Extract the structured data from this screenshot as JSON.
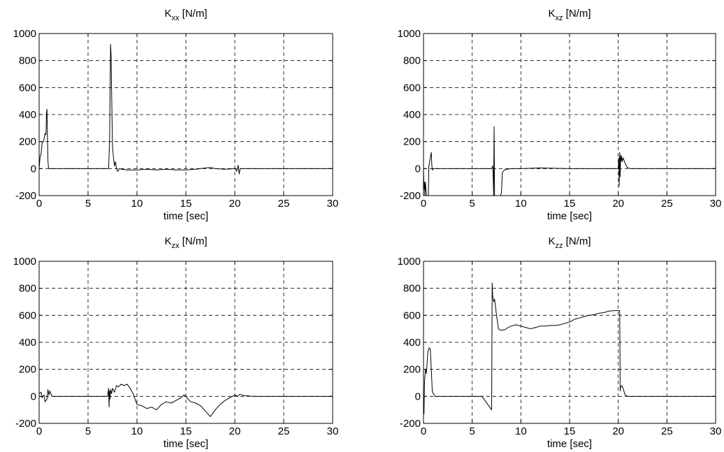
{
  "chart_data": [
    {
      "type": "line",
      "title": {
        "main": "K",
        "sub": "xx",
        "unit": " [N/m]"
      },
      "xlabel": "time [sec]",
      "ylabel": "",
      "xlim": [
        0,
        30
      ],
      "ylim": [
        -200,
        1000
      ],
      "xticks": [
        0,
        5,
        10,
        15,
        20,
        25,
        30
      ],
      "yticks": [
        -200,
        0,
        200,
        400,
        600,
        800,
        1000
      ],
      "grid": true,
      "series": [
        {
          "x": [
            0,
            0.1,
            0.2,
            0.3,
            0.45,
            0.6,
            0.7,
            0.75,
            0.8,
            0.85,
            0.9,
            0.95,
            1.0,
            1.05,
            1.2,
            2,
            4,
            6,
            7.0,
            7.1,
            7.2,
            7.25,
            7.3,
            7.35,
            7.4,
            7.5,
            7.6,
            7.7,
            7.8,
            7.9,
            8.0,
            8.1,
            8.2,
            8.4,
            9,
            10,
            11,
            12,
            13,
            14,
            15,
            16,
            17,
            17.5,
            18,
            19,
            20,
            20.2,
            20.35,
            20.45,
            20.55,
            20.7,
            21,
            22,
            25,
            30
          ],
          "y": [
            0,
            90,
            110,
            190,
            200,
            260,
            250,
            410,
            440,
            230,
            60,
            10,
            0,
            0,
            0,
            0,
            0,
            0,
            0,
            5,
            200,
            560,
            920,
            850,
            600,
            160,
            80,
            20,
            50,
            5,
            -20,
            -15,
            0,
            -5,
            -10,
            -10,
            -5,
            -10,
            -5,
            -10,
            -10,
            -5,
            5,
            8,
            0,
            -5,
            0,
            -20,
            25,
            -40,
            0,
            0,
            0,
            0,
            0,
            0
          ]
        }
      ]
    },
    {
      "type": "line",
      "title": {
        "main": "K",
        "sub": "xz",
        "unit": " [N/m]"
      },
      "xlabel": "time [sec]",
      "ylabel": "",
      "xlim": [
        0,
        30
      ],
      "ylim": [
        -200,
        1000
      ],
      "xticks": [
        0,
        5,
        10,
        15,
        20,
        25,
        30
      ],
      "yticks": [
        -200,
        0,
        200,
        400,
        600,
        800,
        1000
      ],
      "grid": true,
      "series": [
        {
          "x": [
            0,
            0.05,
            0.1,
            0.15,
            0.2,
            0.3,
            0.4,
            0.5,
            0.55,
            0.7,
            0.8,
            0.85,
            0.9,
            1.0,
            1.1,
            1.3,
            2,
            4,
            6,
            7.0,
            7.1,
            7.15,
            7.2,
            7.25,
            7.3,
            7.35,
            7.45,
            7.6,
            7.8,
            7.9,
            8.0,
            8.1,
            8.3,
            8.6,
            9,
            10,
            12,
            15,
            18,
            20,
            20.05,
            20.1,
            20.15,
            20.2,
            20.25,
            20.3,
            20.35,
            20.4,
            20.5,
            20.7,
            20.9,
            21.2,
            22,
            25,
            30
          ],
          "y": [
            0,
            -150,
            -100,
            -200,
            -100,
            -200,
            -200,
            -200,
            20,
            80,
            120,
            30,
            -10,
            0,
            0,
            0,
            0,
            0,
            0,
            0,
            20,
            -40,
            -200,
            310,
            -200,
            -200,
            -200,
            -200,
            -200,
            -200,
            -180,
            -30,
            -10,
            -5,
            0,
            0,
            5,
            0,
            0,
            0,
            80,
            -130,
            120,
            -60,
            100,
            60,
            90,
            50,
            80,
            40,
            10,
            0,
            0,
            0,
            0
          ]
        }
      ]
    },
    {
      "type": "line",
      "title": {
        "main": "K",
        "sub": "zx",
        "unit": " [N/m]"
      },
      "xlabel": "time [sec]",
      "ylabel": "",
      "xlim": [
        0,
        30
      ],
      "ylim": [
        -200,
        1000
      ],
      "xticks": [
        0,
        5,
        10,
        15,
        20,
        25,
        30
      ],
      "yticks": [
        -200,
        0,
        200,
        400,
        600,
        800,
        1000
      ],
      "grid": true,
      "series": [
        {
          "x": [
            0,
            0.2,
            0.3,
            0.5,
            0.6,
            0.8,
            0.9,
            1.0,
            1.1,
            1.2,
            1.3,
            1.4,
            1.6,
            2,
            4,
            6,
            7.0,
            7.1,
            7.15,
            7.2,
            7.25,
            7.3,
            7.4,
            7.5,
            7.7,
            7.9,
            8.1,
            8.4,
            8.7,
            9,
            9.3,
            9.6,
            10,
            10.5,
            11,
            11.5,
            12,
            12.5,
            13,
            13.5,
            14,
            14.5,
            14.8,
            15,
            15.2,
            15.5,
            16,
            16.5,
            17,
            17.5,
            18,
            18.5,
            19,
            19.5,
            20,
            20.3,
            20.5,
            21,
            22,
            25,
            30
          ],
          "y": [
            20,
            30,
            -10,
            10,
            -40,
            -20,
            50,
            10,
            40,
            20,
            0,
            0,
            0,
            0,
            0,
            0,
            0,
            60,
            -80,
            40,
            -20,
            50,
            20,
            60,
            30,
            80,
            70,
            90,
            80,
            90,
            60,
            20,
            -60,
            -70,
            -90,
            -80,
            -100,
            -60,
            -40,
            -50,
            -30,
            -10,
            10,
            0,
            -20,
            -40,
            -50,
            -70,
            -110,
            -150,
            -100,
            -60,
            -30,
            -10,
            10,
            0,
            15,
            5,
            0,
            0,
            0
          ]
        }
      ]
    },
    {
      "type": "line",
      "title": {
        "main": "K",
        "sub": "zz",
        "unit": " [N/m]"
      },
      "xlabel": "time [sec]",
      "ylabel": "",
      "xlim": [
        0,
        30
      ],
      "ylim": [
        -200,
        1000
      ],
      "xticks": [
        0,
        5,
        10,
        15,
        20,
        25,
        30
      ],
      "yticks": [
        -200,
        0,
        200,
        400,
        600,
        800,
        1000
      ],
      "grid": true,
      "series": [
        {
          "x": [
            0,
            0.05,
            0.1,
            0.2,
            0.3,
            0.45,
            0.6,
            0.7,
            0.8,
            0.9,
            1.0,
            1.1,
            1.2,
            1.3,
            1.5,
            2,
            4,
            6,
            7.0,
            7.05,
            7.1,
            7.2,
            7.3,
            7.5,
            7.7,
            7.9,
            8.1,
            8.4,
            8.7,
            9,
            9.5,
            10,
            10.5,
            11,
            11.5,
            12,
            12.5,
            13,
            13.5,
            14,
            14.5,
            15,
            15.5,
            16,
            16.5,
            17,
            17.5,
            18,
            18.5,
            19,
            19.5,
            20.0,
            20.15,
            20.2,
            20.25,
            20.35,
            20.5,
            20.7,
            21,
            22,
            25,
            30
          ],
          "y": [
            0,
            -130,
            100,
            200,
            170,
            330,
            360,
            350,
            200,
            40,
            20,
            10,
            0,
            0,
            0,
            0,
            0,
            0,
            -100,
            840,
            750,
            700,
            720,
            600,
            500,
            490,
            490,
            495,
            510,
            520,
            530,
            520,
            510,
            500,
            510,
            520,
            520,
            525,
            525,
            530,
            540,
            550,
            570,
            580,
            590,
            600,
            605,
            615,
            620,
            630,
            635,
            635,
            635,
            40,
            70,
            80,
            60,
            10,
            0,
            0,
            0,
            0
          ]
        }
      ]
    }
  ]
}
